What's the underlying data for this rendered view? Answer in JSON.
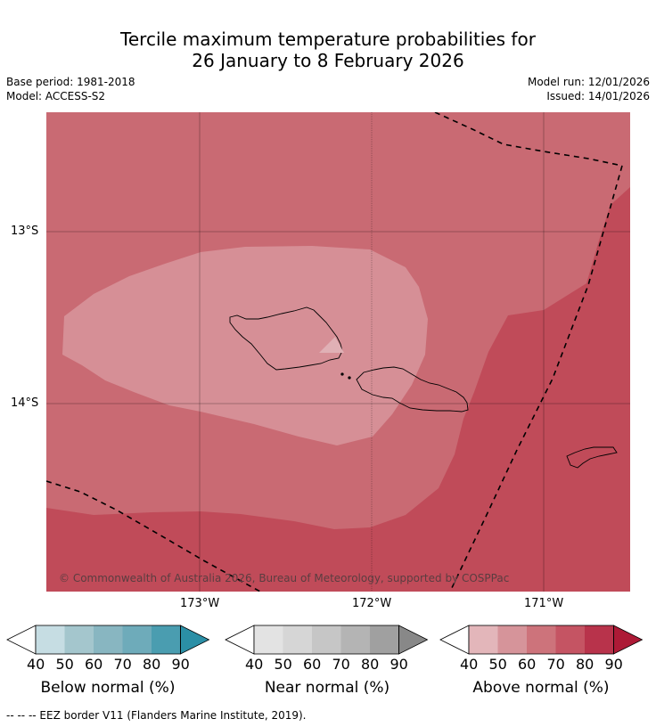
{
  "title": {
    "line1": "Tercile maximum temperature probabilities for",
    "line2": "26 January to 8 February 2026"
  },
  "meta": {
    "base_period": "Base period: 1981-2018",
    "model": "Model: ACCESS-S2",
    "model_run": "Model run: 12/01/2026",
    "issued": "Issued: 14/01/2026"
  },
  "map": {
    "lat_labels": [
      "13°S",
      "14°S"
    ],
    "lon_labels": [
      "173°W",
      "172°W",
      "171°W"
    ],
    "copyright": "© Commonwealth of Australia 2026, Bureau of Meteorology, supported by COSPPac",
    "colors": {
      "above_60_70": "#c96a73",
      "above_50_60": "#d68f96",
      "above_70_80": "#c04b59",
      "land_outline": "#000000",
      "eez_border": "#000000"
    }
  },
  "colorbars": [
    {
      "label": "Below normal (%)",
      "ticks": [
        "40",
        "50",
        "60",
        "70",
        "80",
        "90"
      ],
      "colors": [
        "#ffffff",
        "#c6dde3",
        "#a4c6cd",
        "#88b6c1",
        "#6eabba",
        "#4a9db0",
        "#2b8fa6"
      ]
    },
    {
      "label": "Near normal (%)",
      "ticks": [
        "40",
        "50",
        "60",
        "70",
        "80",
        "90"
      ],
      "colors": [
        "#ffffff",
        "#e3e3e3",
        "#d6d6d6",
        "#c6c6c6",
        "#b4b4b4",
        "#a0a0a0",
        "#888888"
      ]
    },
    {
      "label": "Above normal (%)",
      "ticks": [
        "40",
        "50",
        "60",
        "70",
        "80",
        "90"
      ],
      "colors": [
        "#ffffff",
        "#e3b6ba",
        "#d6949a",
        "#cd737b",
        "#c55463",
        "#b8334b",
        "#ad1a36"
      ]
    }
  ],
  "legend_footer": "--  --  -- EEZ border V11 (Flanders Marine Institute, 2019)."
}
